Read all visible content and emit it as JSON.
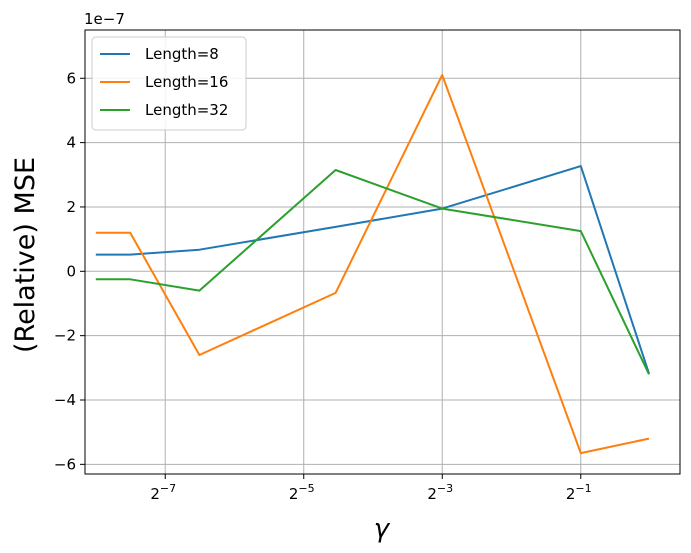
{
  "chart_data": {
    "type": "line",
    "title": "",
    "xlabel": "γ",
    "ylabel": "(Relative) MSE",
    "y_scale_label": "1e−7",
    "x_scale": "log2",
    "x_ticks": [
      {
        "value": 0.0078125,
        "base": "2",
        "exp": "−7"
      },
      {
        "value": 0.03125,
        "base": "2",
        "exp": "−5"
      },
      {
        "value": 0.125,
        "base": "2",
        "exp": "−3"
      },
      {
        "value": 0.5,
        "base": "2",
        "exp": "−1"
      }
    ],
    "y_ticks": [
      {
        "value": -6,
        "label": "−6"
      },
      {
        "value": -4,
        "label": "−4"
      },
      {
        "value": -2,
        "label": "−2"
      },
      {
        "value": 0,
        "label": "0"
      },
      {
        "value": 2,
        "label": "2"
      },
      {
        "value": 4,
        "label": "4"
      },
      {
        "value": 6,
        "label": "6"
      }
    ],
    "xlim": [
      0.0035,
      1.35
    ],
    "ylim": [
      -6.3,
      7.5
    ],
    "grid": true,
    "legend_position": "top-left",
    "x": [
      0.0039,
      0.0055,
      0.011,
      0.043,
      0.125,
      0.5,
      0.99
    ],
    "series": [
      {
        "name": "Length=8",
        "color": "#1f77b4",
        "values": [
          0.52,
          0.52,
          0.67,
          1.38,
          1.95,
          3.27,
          -3.18
        ]
      },
      {
        "name": "Length=16",
        "color": "#ff7f0e",
        "values": [
          1.2,
          1.2,
          -2.6,
          -0.67,
          6.1,
          -5.65,
          -5.2
        ]
      },
      {
        "name": "Length=32",
        "color": "#2ca02c",
        "values": [
          -0.25,
          -0.25,
          -0.6,
          3.15,
          1.95,
          1.25,
          -3.2
        ]
      }
    ]
  }
}
